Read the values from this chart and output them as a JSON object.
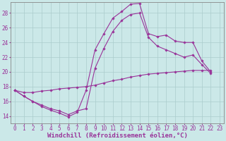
{
  "bg_color": "#cbe8e8",
  "grid_color": "#aacccc",
  "line_color": "#993399",
  "marker_color": "#993399",
  "xlabel": "Windchill (Refroidissement éolien,°C)",
  "xlabel_fontsize": 6.5,
  "tick_fontsize": 5.5,
  "xlim": [
    -0.5,
    23.5
  ],
  "ylim": [
    13.0,
    29.5
  ],
  "yticks": [
    14,
    16,
    18,
    20,
    22,
    24,
    26,
    28
  ],
  "xticks": [
    0,
    1,
    2,
    3,
    4,
    5,
    6,
    7,
    8,
    9,
    10,
    11,
    12,
    13,
    14,
    15,
    16,
    17,
    18,
    19,
    20,
    21,
    22,
    23
  ],
  "series1": [
    17.5,
    16.7,
    16.0,
    15.3,
    14.8,
    14.4,
    13.9,
    14.5,
    17.5,
    23.0,
    25.2,
    27.3,
    28.2,
    29.2,
    29.3,
    25.2,
    24.8,
    25.0,
    24.2,
    24.0,
    24.0,
    21.5,
    20.0
  ],
  "series2": [
    17.5,
    16.7,
    16.0,
    15.5,
    15.0,
    14.7,
    14.2,
    14.7,
    15.0,
    20.5,
    23.2,
    25.5,
    27.0,
    27.8,
    28.0,
    24.7,
    23.5,
    23.0,
    22.5,
    22.0,
    22.3,
    21.0,
    19.8
  ],
  "series3": [
    17.5,
    17.2,
    17.2,
    17.4,
    17.5,
    17.7,
    17.8,
    17.9,
    18.0,
    18.2,
    18.5,
    18.8,
    19.0,
    19.3,
    19.5,
    19.7,
    19.8,
    19.9,
    20.0,
    20.1,
    20.2,
    20.2,
    20.2
  ]
}
